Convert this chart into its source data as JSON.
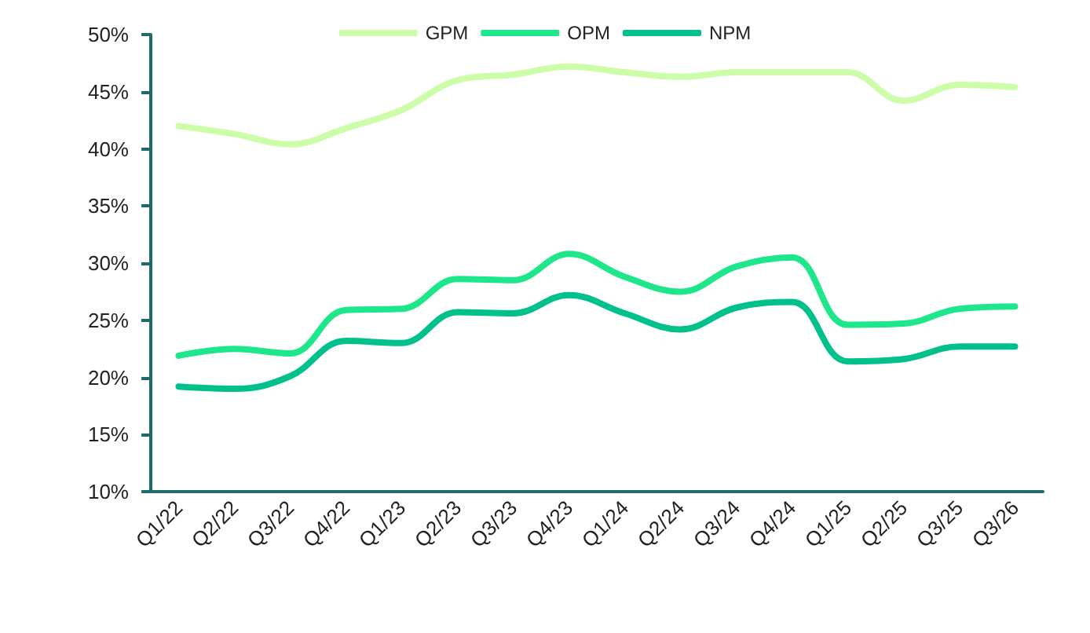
{
  "chart_data": {
    "type": "line",
    "categories": [
      "Q1/22",
      "Q2/22",
      "Q3/22",
      "Q4/22",
      "Q1/23",
      "Q2/23",
      "Q3/23",
      "Q4/23",
      "Q1/24",
      "Q2/24",
      "Q3/24",
      "Q4/24",
      "Q1/25",
      "Q2/25",
      "Q3/25",
      "Q3/26"
    ],
    "series": [
      {
        "name": "GPM",
        "color": "#ccfda8",
        "values": [
          42,
          41.3,
          40.4,
          41.8,
          43.4,
          46,
          46.5,
          47.2,
          46.7,
          46.3,
          46.7,
          46.7,
          46.7,
          44.2,
          45.6,
          45.4
        ]
      },
      {
        "name": "OPM",
        "color": "#1ee68a",
        "values": [
          21.9,
          22.5,
          22.1,
          25.9,
          26.0,
          28.6,
          28.5,
          30.8,
          28.8,
          27.5,
          29.7,
          30.5,
          24.6,
          24.7,
          26.0,
          26.2
        ]
      },
      {
        "name": "NPM",
        "color": "#00c08b",
        "values": [
          19.2,
          19.0,
          20.1,
          23.2,
          23.0,
          25.7,
          25.6,
          27.2,
          25.6,
          24.2,
          26.1,
          26.6,
          21.4,
          21.6,
          22.7,
          22.7
        ]
      }
    ],
    "ylim": [
      10,
      50
    ],
    "yticks": [
      {
        "value": 10,
        "label": "10%"
      },
      {
        "value": 15,
        "label": "15%"
      },
      {
        "value": 20,
        "label": "20%"
      },
      {
        "value": 25,
        "label": "25%"
      },
      {
        "value": 30,
        "label": "30%"
      },
      {
        "value": 35,
        "label": "35%"
      },
      {
        "value": 40,
        "label": "40%"
      },
      {
        "value": 45,
        "label": "45%"
      },
      {
        "value": 50,
        "label": "50%"
      }
    ],
    "grid": false,
    "legend": "top",
    "marker": "none",
    "line_style": "solid"
  }
}
